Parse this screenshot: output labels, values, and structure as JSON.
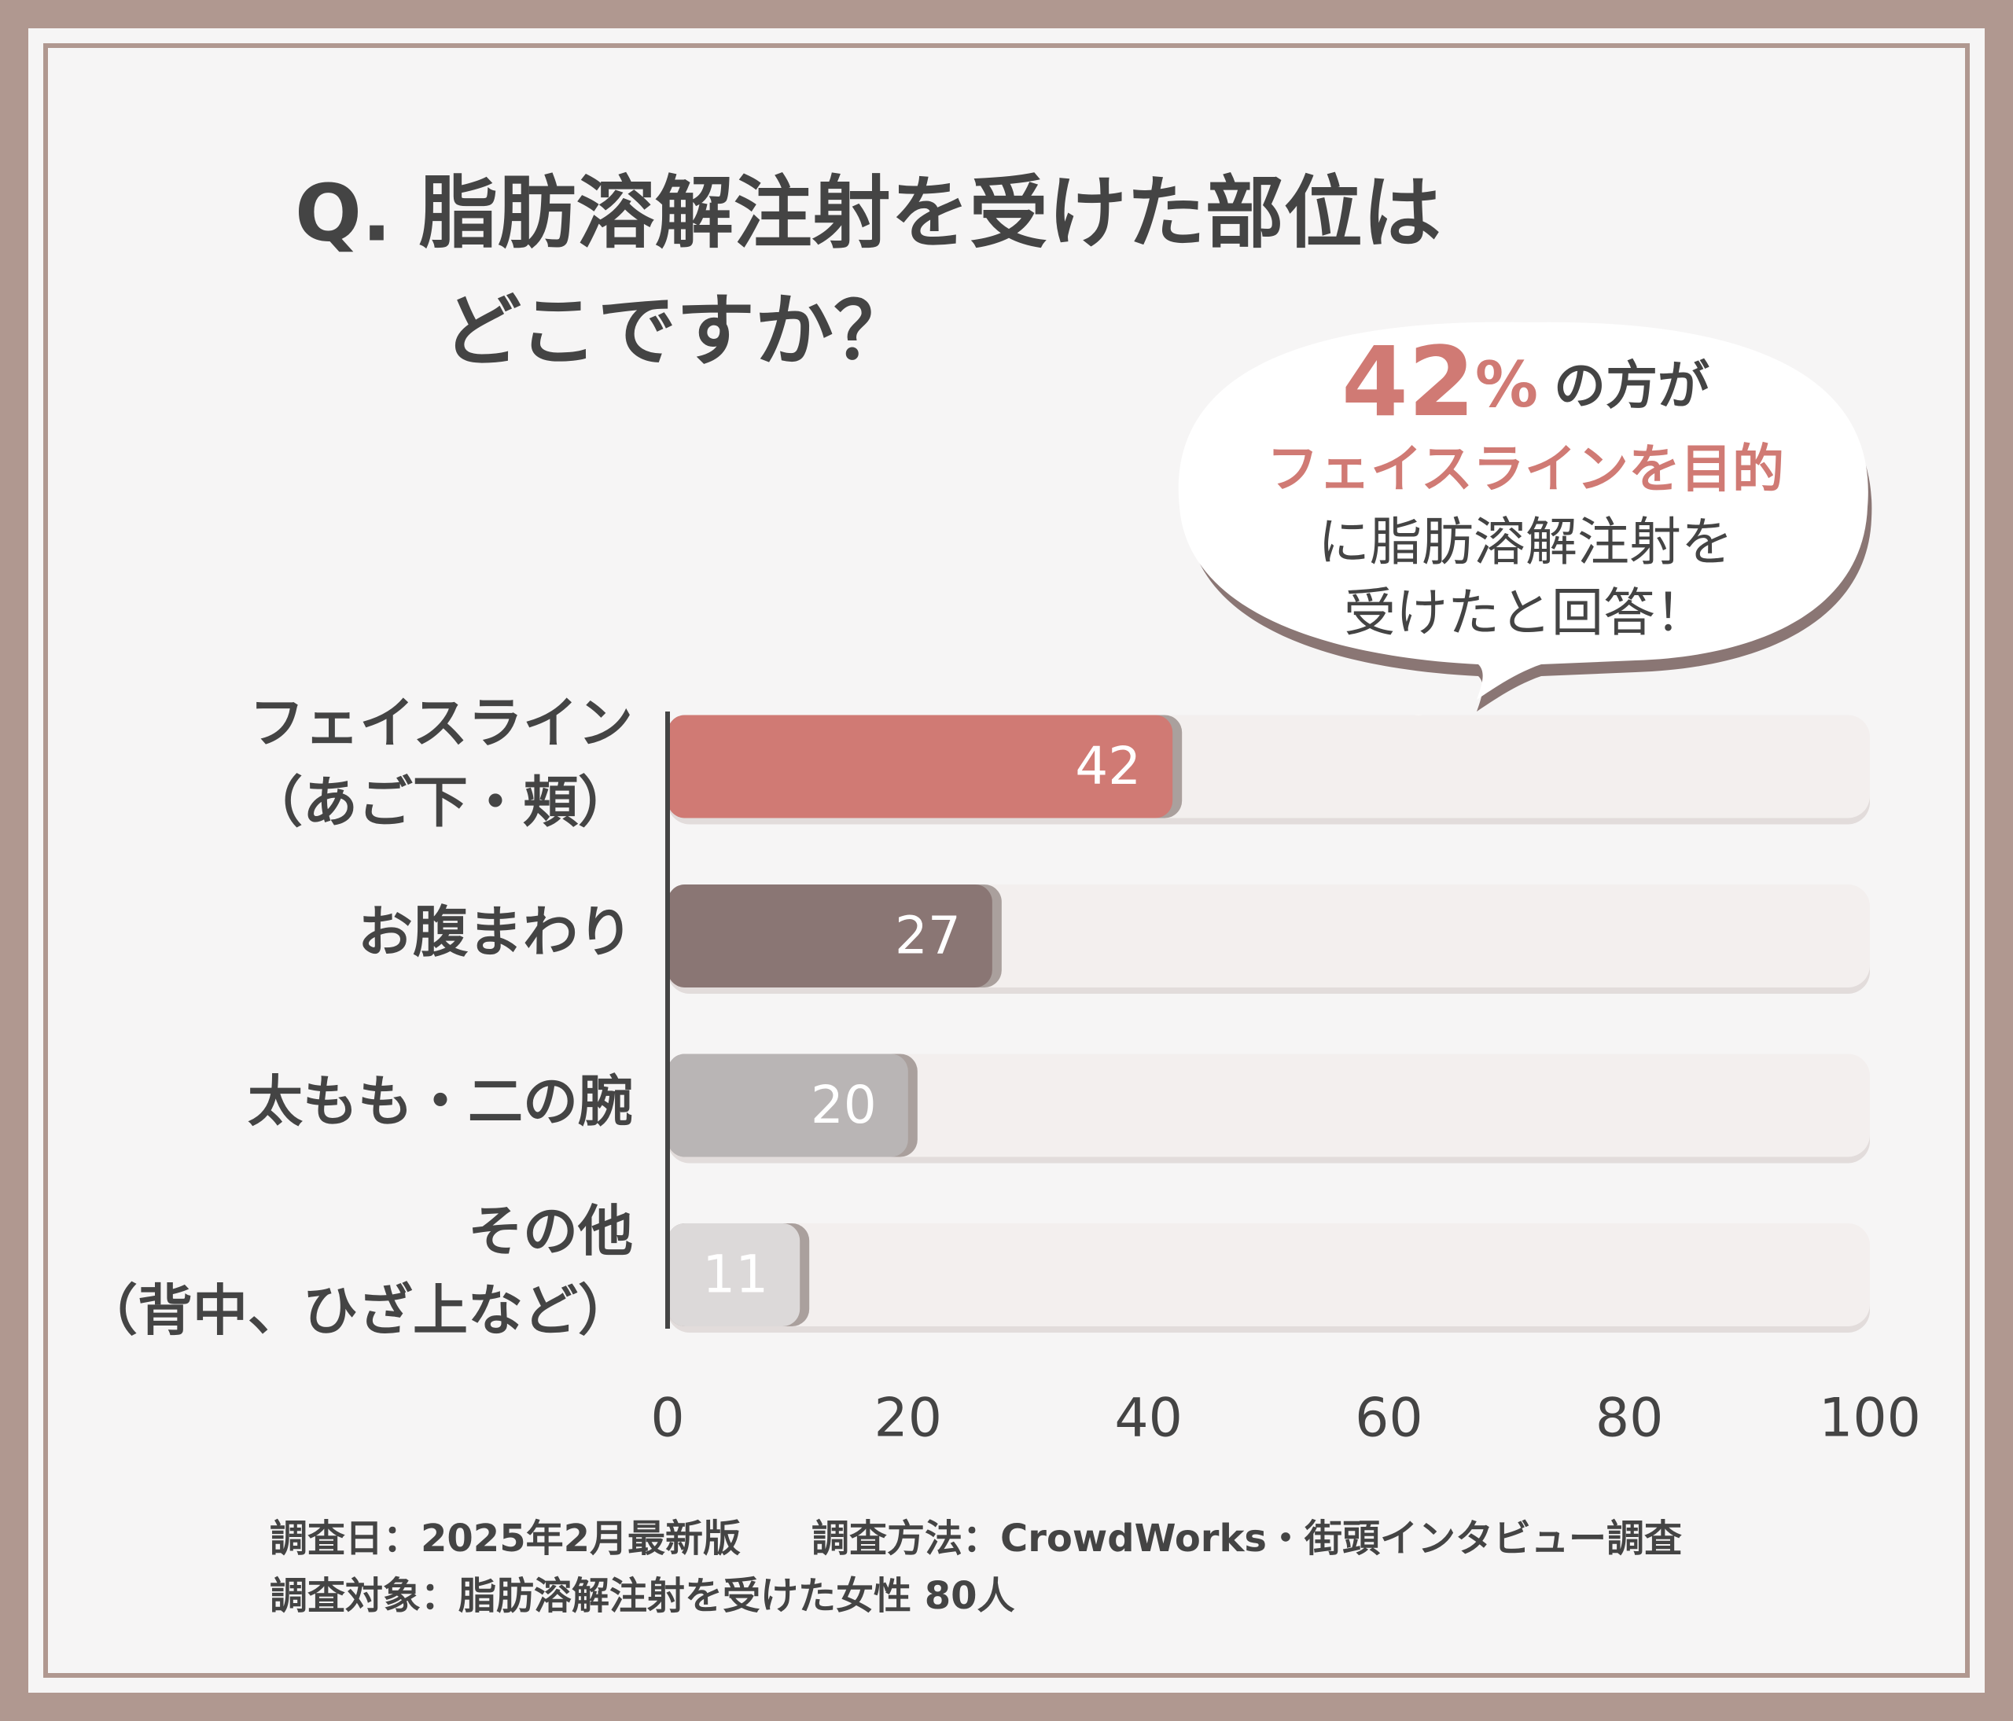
{
  "chart_data": {
    "type": "bar",
    "orientation": "horizontal",
    "title": [
      "Q. 脂肪溶解注射を受けた部位は",
      "どこですか？"
    ],
    "categories": [
      [
        "フェイスライン",
        "（あご下・頬）"
      ],
      [
        "お腹まわり"
      ],
      [
        "太もも・二の腕"
      ],
      [
        "その他",
        "（背中、ひざ上など）"
      ]
    ],
    "values": [
      42,
      27,
      20,
      11
    ],
    "colors": [
      "#d07a74",
      "#8a7674",
      "#b9b5b5",
      "#dcd9d9"
    ],
    "xlim": [
      0,
      100
    ],
    "xticks": [
      0,
      20,
      40,
      60,
      80,
      100
    ],
    "callout": {
      "number": 42,
      "sign": "%",
      "line1_rest": "の方が",
      "line2": "フェイスラインを目的",
      "line3": "に脂肪溶解注射を",
      "line4": "受けたと回答！"
    },
    "footer": {
      "date": "調査日：2025年2月最新版",
      "method": "調査方法：CrowdWorks・街頭インタビュー調査",
      "target": "調査対象：脂肪溶解注射を受けた女性 80人"
    }
  }
}
